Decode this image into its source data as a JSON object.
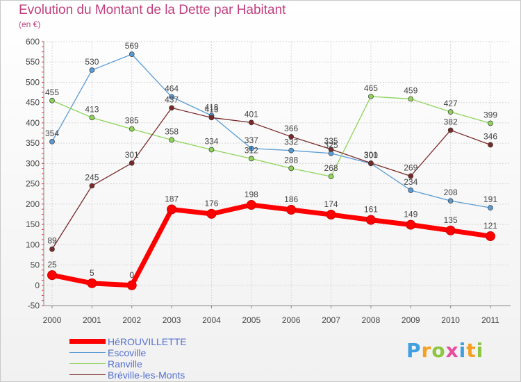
{
  "header": {
    "title": "Evolution du Montant de la Dette par Habitant",
    "subtitle": "(en €)"
  },
  "logo": {
    "text": "Proxiti",
    "letters": [
      {
        "ch": "P",
        "color": "#3ea0e0"
      },
      {
        "ch": "r",
        "color": "#f5a020"
      },
      {
        "ch": "o",
        "color": "#8cc63f"
      },
      {
        "ch": "x",
        "color": "#e84e9c"
      },
      {
        "ch": "i",
        "color": "#3ea0e0"
      },
      {
        "ch": "t",
        "color": "#f5a020"
      },
      {
        "ch": "i",
        "color": "#8cc63f"
      }
    ]
  },
  "chart_data": {
    "type": "line",
    "title": "Evolution du Montant de la Dette par Habitant",
    "subtitle": "(en €)",
    "x": [
      "2000",
      "2001",
      "2002",
      "2003",
      "2004",
      "2005",
      "2006",
      "2007",
      "2008",
      "2009",
      "2010",
      "2011"
    ],
    "ylim": [
      -50,
      600
    ],
    "yticks": [
      -50,
      0,
      50,
      100,
      150,
      200,
      250,
      300,
      350,
      400,
      450,
      500,
      550,
      600
    ],
    "grid": true,
    "legend_position": "bottom-left",
    "series": [
      {
        "name": "HéROUVILLETTE",
        "color": "#ff0000",
        "values": [
          25,
          5,
          0,
          187,
          176,
          198,
          186,
          174,
          161,
          149,
          135,
          121
        ]
      },
      {
        "name": "Escoville",
        "color": "#5a9bd5",
        "values": [
          354,
          530,
          569,
          464,
          418,
          337,
          332,
          325,
          300,
          234,
          208,
          191
        ]
      },
      {
        "name": "Ranville",
        "color": "#8ed45a",
        "values": [
          455,
          413,
          385,
          358,
          334,
          312,
          288,
          268,
          465,
          459,
          427,
          399
        ]
      },
      {
        "name": "Bréville-les-Monts",
        "color": "#7a2a2a",
        "values": [
          89,
          245,
          301,
          437,
          413,
          401,
          366,
          335,
          301,
          269,
          382,
          346
        ]
      }
    ]
  }
}
